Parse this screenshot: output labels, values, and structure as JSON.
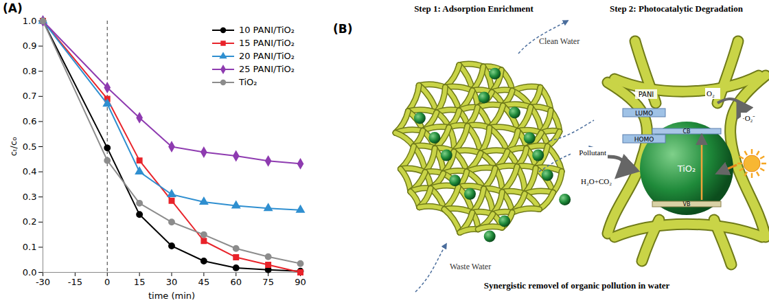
{
  "chart_data": {
    "type": "line",
    "panel_label": "(A)",
    "x_label": "time (min)",
    "y_label": "cₜ/c₀",
    "x": [
      -30,
      0,
      15,
      30,
      45,
      60,
      75,
      90
    ],
    "series": [
      {
        "name": "10 PANI/TiO₂",
        "color": "#000000",
        "marker": "circle",
        "values": [
          1.0,
          0.495,
          0.23,
          0.105,
          0.045,
          0.018,
          0.01,
          0.005
        ]
      },
      {
        "name": "15 PANI/TiO₂",
        "color": "#e8232a",
        "marker": "square",
        "values": [
          1.0,
          0.69,
          0.445,
          0.285,
          0.125,
          0.06,
          0.03,
          0.0
        ]
      },
      {
        "name": "20 PANI/TiO₂",
        "color": "#2f8fd0",
        "marker": "triangle",
        "values": [
          1.0,
          0.67,
          0.4,
          0.31,
          0.28,
          0.265,
          0.255,
          0.248
        ]
      },
      {
        "name": "25 PANI/TiO₂",
        "color": "#8e3bb0",
        "marker": "diamond",
        "values": [
          1.0,
          0.735,
          0.615,
          0.5,
          0.478,
          0.463,
          0.443,
          0.432
        ]
      },
      {
        "name": "TiO₂",
        "color": "#8c8c8c",
        "marker": "circle",
        "values": [
          1.0,
          0.445,
          0.275,
          0.2,
          0.15,
          0.095,
          0.062,
          0.035
        ]
      }
    ],
    "reference_lines": [
      {
        "x": 0,
        "line_style": "dashed"
      }
    ],
    "xlim": [
      -30,
      90
    ],
    "xticks": [
      -30,
      -15,
      0,
      15,
      30,
      45,
      60,
      75,
      90
    ],
    "ylim": [
      0,
      1
    ],
    "yticks": [
      {
        "value": 0,
        "label": "0.0"
      },
      0.1,
      0.2,
      0.3,
      0.4,
      0.5,
      0.6,
      0.7,
      0.8,
      0.9,
      {
        "value": 1,
        "label": "1.0"
      }
    ],
    "grid": false,
    "legend": "upper right"
  },
  "diagram": {
    "panel_label": "(B)",
    "steps": [
      {
        "title": "Step 1: Adsorption Enrichment",
        "inflow": "Waste Water",
        "outflow": "Clean Water"
      },
      {
        "title": "Step 2: Photocatalytic Degradation",
        "matrix": "PANI",
        "particle": "TiO₂",
        "levels": [
          "LUMO",
          "HOMO"
        ],
        "bands": [
          "CB",
          "VB"
        ],
        "reactant": "Pollutant",
        "product": "H₂O+CO₂",
        "oxygen": "O₂",
        "radical": "·O₂⁻"
      }
    ],
    "caption": "Synergistic removel of organic pollution in water"
  }
}
